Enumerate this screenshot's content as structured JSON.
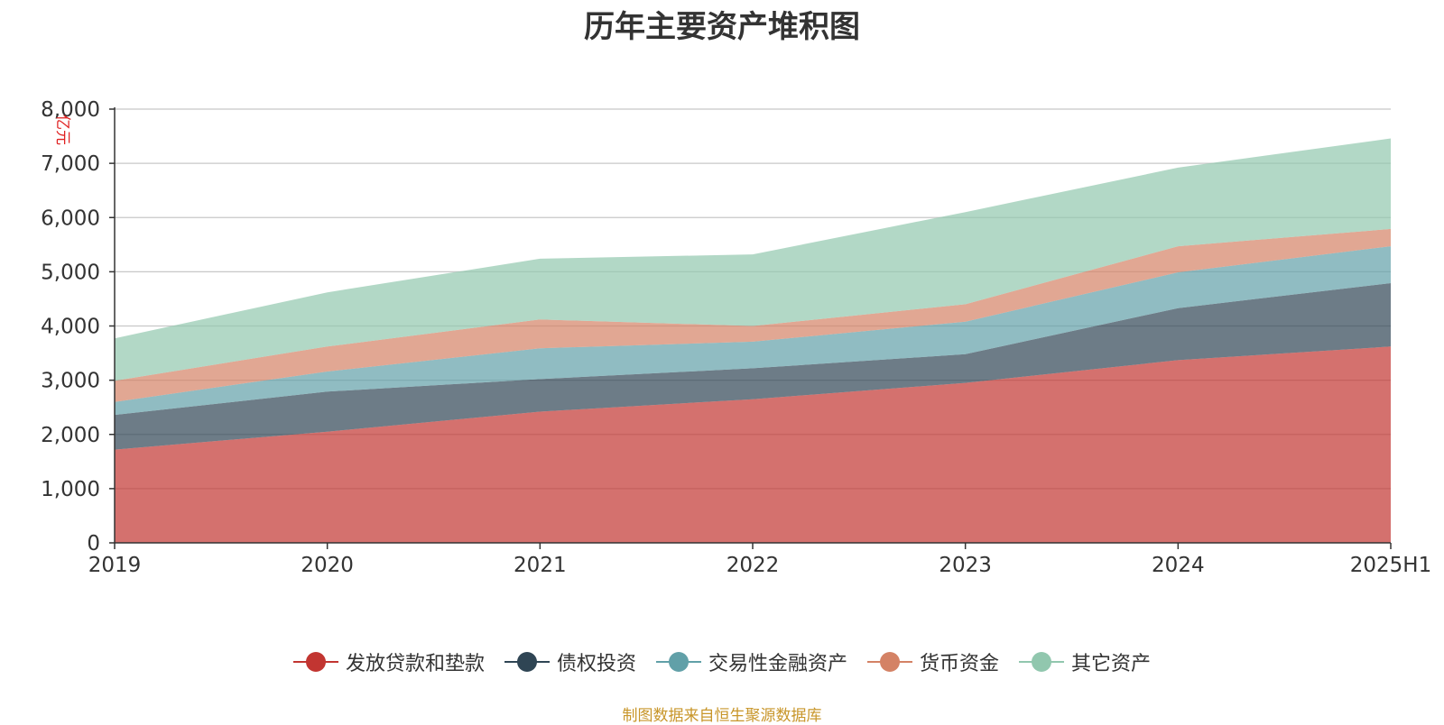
{
  "title": "历年主要资产堆积图",
  "source": "制图数据来自恒生聚源数据库",
  "chart_data": {
    "type": "area",
    "stacked": true,
    "title": "历年主要资产堆积图",
    "ylabel": "亿元",
    "ylim": [
      0,
      8000
    ],
    "yticks": [
      "0",
      "1,000",
      "2,000",
      "3,000",
      "4,000",
      "5,000",
      "6,000",
      "7,000",
      "8,000"
    ],
    "ytick_values": [
      0,
      1000,
      2000,
      3000,
      4000,
      5000,
      6000,
      7000,
      8000
    ],
    "categories": [
      "2019",
      "2020",
      "2021",
      "2022",
      "2023",
      "2024",
      "2025H1"
    ],
    "grid": true,
    "legend_position": "bottom",
    "series": [
      {
        "name": "发放贷款和垫款",
        "color": "#c23531",
        "values": [
          1720,
          2050,
          2420,
          2650,
          2950,
          3370,
          3620
        ]
      },
      {
        "name": "债权投资",
        "color": "#2f4554",
        "values": [
          640,
          740,
          600,
          570,
          530,
          960,
          1170
        ]
      },
      {
        "name": "交易性金融资产",
        "color": "#61a0a8",
        "values": [
          240,
          370,
          570,
          490,
          600,
          660,
          680
        ]
      },
      {
        "name": "货币资金",
        "color": "#d48265",
        "values": [
          390,
          460,
          530,
          290,
          320,
          480,
          320
        ]
      },
      {
        "name": "其它资产",
        "color": "#91c7ae",
        "values": [
          780,
          1000,
          1120,
          1320,
          1700,
          1450,
          1670
        ]
      }
    ]
  }
}
